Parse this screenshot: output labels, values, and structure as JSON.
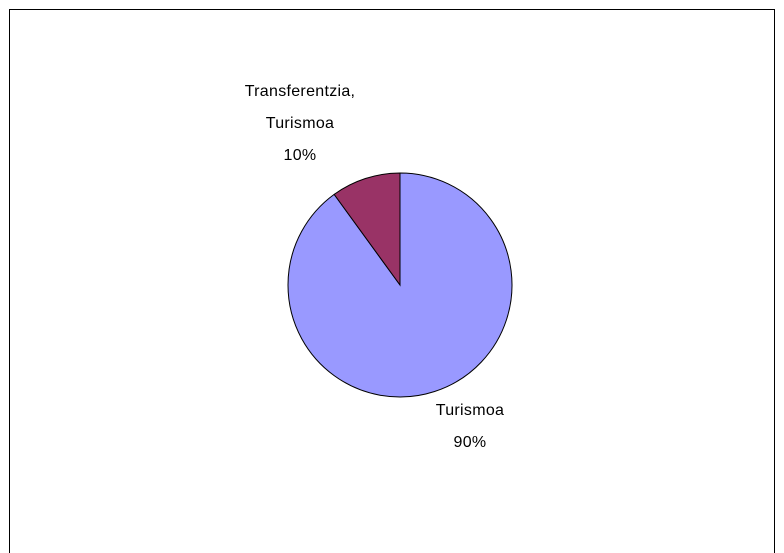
{
  "chart_data": {
    "type": "pie",
    "categories": [
      "Turismoa",
      "Transferentzia, Turismoa"
    ],
    "values": [
      90,
      10
    ],
    "value_labels": [
      "90%",
      "10%"
    ],
    "colors": [
      "#9999ff",
      "#993366"
    ]
  }
}
